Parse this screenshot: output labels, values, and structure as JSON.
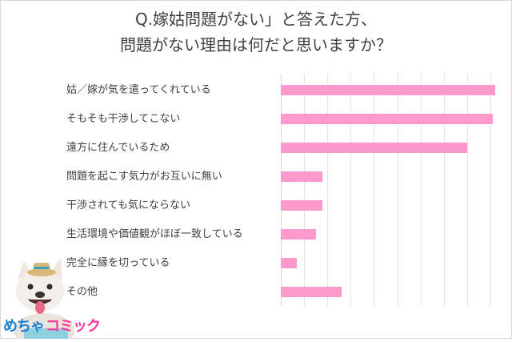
{
  "title": {
    "line1": "Q.嫁姑問題がない」と答えた方、",
    "line2": "問題がない理由は何だと思いますか？"
  },
  "colors": {
    "bar": "#ff99cc",
    "grid": "#e3e3e3",
    "text": "#404040",
    "logo_blue": "#1a7fd6",
    "logo_pink": "#ff3399"
  },
  "logo": {
    "part1": "めちゃ",
    "part2": "コミック"
  },
  "chart_data": {
    "type": "bar",
    "orientation": "horizontal",
    "title": "Q.嫁姑問題がない」と答えた方、問題がない理由は何だと思いますか？",
    "xlabel": "",
    "ylabel": "",
    "grid": true,
    "tick_labels_shown": false,
    "categories": [
      "姑／嫁が気を遣ってくれている",
      "そもそも干渉してこない",
      "遠方に住んでいるため",
      "問題を起こす気力がお互いに無い",
      "干渉されても気にならない",
      "生活環境や価値観がほぼ一致している",
      "完全に縁を切っている",
      "その他"
    ],
    "values": [
      9.2,
      9.1,
      8.0,
      1.8,
      1.8,
      1.5,
      0.7,
      2.6
    ],
    "value_unit": "gridline units (axis values not shown)",
    "xlim": [
      0,
      10
    ]
  }
}
